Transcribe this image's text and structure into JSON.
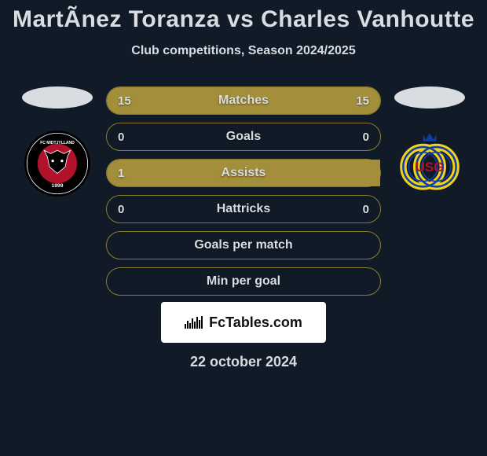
{
  "colors": {
    "background": "#111b27",
    "accent": "#a38e3b",
    "accent_border": "#8e7a2f",
    "text": "#d9dde2",
    "text_shadow": "rgba(0,0,0,0.5)",
    "player_ellipse": "#d9dde2",
    "footer_bg": "#ffffff",
    "footer_text": "#111111"
  },
  "title": "MartÃ­nez Toranza vs Charles Vanhoutte",
  "subtitle": "Club competitions, Season 2024/2025",
  "left": {
    "club_name": "FC Midtjylland",
    "badge": {
      "bg": "#000000",
      "ring": "#ffffff",
      "inner": "#b1112a",
      "year": "1999"
    }
  },
  "right": {
    "club_name": "Union SG",
    "badge": {
      "bg": "#f2d21a",
      "ring_blue": "#0f3fa6",
      "crown": "#0f3fa6",
      "letters": "USG"
    }
  },
  "stats": [
    {
      "label": "Matches",
      "left_val": "15",
      "right_val": "15",
      "left_pct": 50,
      "right_pct": 50,
      "fill_left": "#a38e3b",
      "fill_right": "#a38e3b"
    },
    {
      "label": "Goals",
      "left_val": "0",
      "right_val": "0",
      "left_pct": 0,
      "right_pct": 0,
      "fill_left": "#a38e3b",
      "fill_right": "#a38e3b"
    },
    {
      "label": "Assists",
      "left_val": "1",
      "right_val": "",
      "left_pct": 100,
      "right_pct": 0,
      "fill_left": "#a38e3b",
      "fill_right": "#a38e3b"
    },
    {
      "label": "Hattricks",
      "left_val": "0",
      "right_val": "0",
      "left_pct": 0,
      "right_pct": 0,
      "fill_left": "#a38e3b",
      "fill_right": "#a38e3b"
    },
    {
      "label": "Goals per match",
      "left_val": "",
      "right_val": "",
      "left_pct": 0,
      "right_pct": 0,
      "fill_left": "#a38e3b",
      "fill_right": "#a38e3b"
    },
    {
      "label": "Min per goal",
      "left_val": "",
      "right_val": "",
      "left_pct": 0,
      "right_pct": 0,
      "fill_left": "#a38e3b",
      "fill_right": "#a38e3b"
    }
  ],
  "footer": {
    "brand": "FcTables.com",
    "date": "22 october 2024"
  },
  "typography": {
    "title_fontsize": 30,
    "subtitle_fontsize": 16,
    "bar_label_fontsize": 16,
    "value_fontsize": 15,
    "footer_fontsize": 18
  }
}
